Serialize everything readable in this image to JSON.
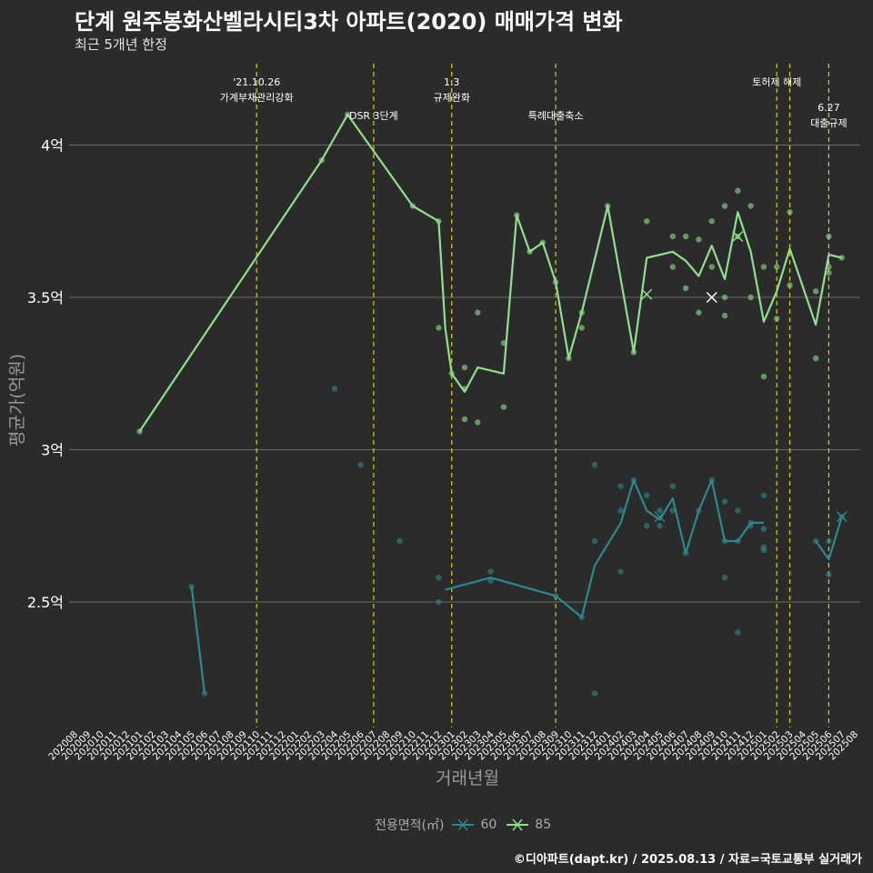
{
  "title": "단계 원주봉화산벨라시티3차 아파트(2020) 매매가격 변화",
  "subtitle": "최근 5개년 한정",
  "caption": "©디아파트(dapt.kr) / 2025.08.13 / 자료=국토교통부 실거래가",
  "colors": {
    "background": "#2b2b2b",
    "grid": "#6a6a6a",
    "event_line": "#d4d400",
    "series_60": "#2a8a8f",
    "series_85": "#8fe08a",
    "axis_text": "#ffffff",
    "axis_title": "#999999"
  },
  "chart_data": {
    "type": "line",
    "title": "단계 원주봉화산벨라시티3차 아파트(2020) 매매가격 변화",
    "subtitle": "최근 5개년 한정",
    "xlabel": "거래년월",
    "ylabel": "평균가(억원)",
    "legend_title": "전용면적(㎡)",
    "legend_position": "bottom",
    "grid": true,
    "y_ticks": [
      {
        "value": 2.5,
        "label": "2.5억"
      },
      {
        "value": 3.0,
        "label": "3억"
      },
      {
        "value": 3.5,
        "label": "3.5억"
      },
      {
        "value": 4.0,
        "label": "4억"
      }
    ],
    "ylim": [
      2.1,
      4.27
    ],
    "x_categories": [
      "202008",
      "202009",
      "202010",
      "202011",
      "202012",
      "202101",
      "202102",
      "202103",
      "202104",
      "202105",
      "202106",
      "202107",
      "202108",
      "202109",
      "202110",
      "202111",
      "202112",
      "202201",
      "202202",
      "202203",
      "202204",
      "202205",
      "202206",
      "202207",
      "202208",
      "202209",
      "202210",
      "202211",
      "202212",
      "202301",
      "202302",
      "202303",
      "202304",
      "202305",
      "202306",
      "202307",
      "202308",
      "202309",
      "202310",
      "202311",
      "202312",
      "202401",
      "202402",
      "202403",
      "202404",
      "202405",
      "202406",
      "202407",
      "202408",
      "202409",
      "202410",
      "202411",
      "202412",
      "202501",
      "202502",
      "202503",
      "202504",
      "202505",
      "202506",
      "202507",
      "202508"
    ],
    "events": [
      {
        "x": 14.0,
        "lines": [
          "'21.10.26",
          "가계부채관리강화"
        ],
        "row": 1
      },
      {
        "x": 23.0,
        "lines": [
          "DSR 3단계"
        ],
        "row": 2
      },
      {
        "x": 29.0,
        "lines": [
          "1.3",
          "규제완화"
        ],
        "row": 1
      },
      {
        "x": 37.0,
        "lines": [
          "특례대출축소"
        ],
        "row": 2
      },
      {
        "x": 54.0,
        "lines": [
          "토허제 해제"
        ],
        "row": 1
      },
      {
        "x": 55.0,
        "lines": [
          ""
        ],
        "row": 0
      },
      {
        "x": 58.0,
        "lines": [
          "6.27",
          "대출규제"
        ],
        "row": 3
      }
    ],
    "series": [
      {
        "name": "60",
        "color": "#2a8a8f",
        "segments": [
          [
            [
              9,
              2.55
            ],
            [
              10,
              2.2
            ]
          ],
          [
            [
              28.5,
              2.54
            ],
            [
              32,
              2.58
            ],
            [
              37,
              2.52
            ],
            [
              39,
              2.45
            ],
            [
              40,
              2.62
            ],
            [
              42,
              2.76
            ],
            [
              43,
              2.9
            ],
            [
              44,
              2.8
            ],
            [
              45,
              2.77
            ],
            [
              46,
              2.84
            ],
            [
              47,
              2.66
            ],
            [
              48,
              2.8
            ],
            [
              49,
              2.9
            ],
            [
              50,
              2.7
            ],
            [
              51,
              2.7
            ],
            [
              52,
              2.76
            ],
            [
              53,
              2.76
            ]
          ],
          [
            [
              57,
              2.7
            ],
            [
              58,
              2.64
            ],
            [
              59,
              2.78
            ]
          ]
        ],
        "points": [
          [
            9,
            2.55
          ],
          [
            10,
            2.2
          ],
          [
            20,
            3.2
          ],
          [
            22,
            2.95
          ],
          [
            25,
            2.7
          ],
          [
            28,
            2.58
          ],
          [
            28,
            2.5
          ],
          [
            32,
            2.6
          ],
          [
            32,
            2.57
          ],
          [
            37,
            2.52
          ],
          [
            39,
            2.45
          ],
          [
            40,
            2.95
          ],
          [
            40,
            2.7
          ],
          [
            40,
            2.2
          ],
          [
            42,
            2.88
          ],
          [
            42,
            2.8
          ],
          [
            42,
            2.6
          ],
          [
            43,
            2.9
          ],
          [
            44,
            2.85
          ],
          [
            44,
            2.75
          ],
          [
            45,
            2.75
          ],
          [
            45,
            2.8
          ],
          [
            46,
            2.88
          ],
          [
            46,
            2.8
          ],
          [
            47,
            2.66
          ],
          [
            48,
            2.8
          ],
          [
            49,
            2.9
          ],
          [
            50,
            2.83
          ],
          [
            50,
            2.7
          ],
          [
            50,
            2.58
          ],
          [
            51,
            2.8
          ],
          [
            51,
            2.7
          ],
          [
            51,
            2.4
          ],
          [
            52,
            2.76
          ],
          [
            52,
            2.75
          ],
          [
            53,
            2.85
          ],
          [
            53,
            2.74
          ],
          [
            53,
            2.68
          ],
          [
            53,
            2.67
          ],
          [
            57,
            2.7
          ],
          [
            58,
            2.7
          ],
          [
            58,
            2.59
          ],
          [
            59,
            2.78
          ]
        ],
        "markers": [
          [
            45,
            2.78
          ],
          [
            59,
            2.78
          ]
        ]
      },
      {
        "name": "85",
        "color": "#8fe08a",
        "segments": [
          [
            [
              5,
              3.06
            ],
            [
              19,
              3.95
            ],
            [
              21,
              4.1
            ],
            [
              26,
              3.8
            ],
            [
              28,
              3.75
            ],
            [
              28.5,
              3.4
            ],
            [
              29,
              3.25
            ],
            [
              30,
              3.19
            ],
            [
              31,
              3.27
            ],
            [
              33,
              3.25
            ],
            [
              34,
              3.77
            ],
            [
              35,
              3.65
            ],
            [
              36,
              3.68
            ],
            [
              37,
              3.55
            ],
            [
              38,
              3.3
            ],
            [
              39,
              3.45
            ],
            [
              41,
              3.8
            ],
            [
              43,
              3.32
            ],
            [
              44,
              3.63
            ],
            [
              46,
              3.65
            ],
            [
              47,
              3.62
            ],
            [
              48,
              3.57
            ],
            [
              49,
              3.67
            ],
            [
              50,
              3.56
            ],
            [
              51,
              3.78
            ],
            [
              52,
              3.65
            ],
            [
              53,
              3.42
            ],
            [
              54,
              3.52
            ],
            [
              55,
              3.66
            ],
            [
              57,
              3.41
            ],
            [
              58,
              3.64
            ],
            [
              59,
              3.63
            ]
          ]
        ],
        "points": [
          [
            5,
            3.06
          ],
          [
            19,
            3.95
          ],
          [
            21,
            4.1
          ],
          [
            26,
            3.8
          ],
          [
            28,
            3.75
          ],
          [
            28,
            3.4
          ],
          [
            29,
            3.25
          ],
          [
            30,
            3.27
          ],
          [
            30,
            3.2
          ],
          [
            30,
            3.1
          ],
          [
            31,
            3.45
          ],
          [
            31,
            3.09
          ],
          [
            33,
            3.35
          ],
          [
            33,
            3.14
          ],
          [
            34,
            3.77
          ],
          [
            35,
            3.65
          ],
          [
            36,
            3.68
          ],
          [
            37,
            3.55
          ],
          [
            38,
            3.3
          ],
          [
            39,
            3.45
          ],
          [
            39,
            3.4
          ],
          [
            41,
            3.8
          ],
          [
            43,
            3.32
          ],
          [
            44,
            3.75
          ],
          [
            46,
            3.7
          ],
          [
            46,
            3.6
          ],
          [
            47,
            3.7
          ],
          [
            47,
            3.53
          ],
          [
            48,
            3.69
          ],
          [
            48,
            3.45
          ],
          [
            49,
            3.75
          ],
          [
            49,
            3.6
          ],
          [
            50,
            3.8
          ],
          [
            50,
            3.5
          ],
          [
            50,
            3.44
          ],
          [
            51,
            3.85
          ],
          [
            51,
            3.7
          ],
          [
            52,
            3.8
          ],
          [
            52,
            3.5
          ],
          [
            53,
            3.6
          ],
          [
            53,
            3.24
          ],
          [
            54,
            3.6
          ],
          [
            54,
            3.43
          ],
          [
            55,
            3.78
          ],
          [
            55,
            3.54
          ],
          [
            57,
            3.52
          ],
          [
            57,
            3.3
          ],
          [
            58,
            3.7
          ],
          [
            58,
            3.6
          ],
          [
            58,
            3.58
          ],
          [
            59,
            3.63
          ]
        ],
        "markers": [
          [
            44,
            3.51
          ],
          [
            49,
            3.5
          ],
          [
            51,
            3.7
          ]
        ]
      }
    ]
  }
}
